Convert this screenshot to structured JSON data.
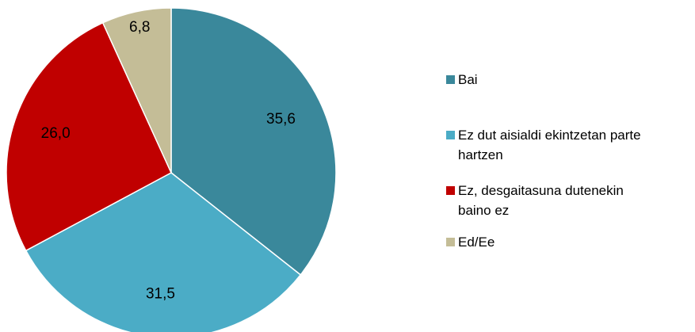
{
  "chart_data": {
    "type": "pie",
    "categories": [
      "Bai",
      "Ez dut aisialdi ekintzetan parte hartzen",
      "Ez, desgaitasuna dutenekin baino ez",
      "Ed/Ee"
    ],
    "values": [
      35.6,
      31.5,
      26.0,
      6.8
    ],
    "value_labels": [
      "35,6",
      "31,5",
      "26,0",
      "6,8"
    ],
    "colors": [
      "#3a889b",
      "#4bacc6",
      "#c00000",
      "#c4bd97"
    ],
    "legend": "right"
  }
}
